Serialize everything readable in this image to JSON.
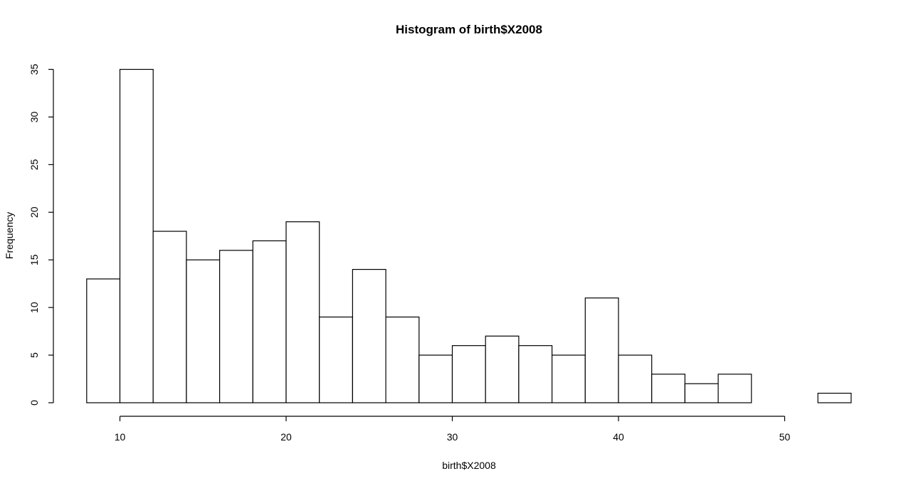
{
  "chart_data": {
    "type": "bar",
    "title": "Histogram of birth$X2008",
    "xlabel": "birth$X2008",
    "ylabel": "Frequency",
    "bin_edges": [
      8,
      10,
      12,
      14,
      16,
      18,
      20,
      22,
      24,
      26,
      28,
      30,
      32,
      34,
      36,
      38,
      40,
      42,
      44,
      46,
      48,
      50,
      52,
      54
    ],
    "values": [
      13,
      35,
      18,
      15,
      16,
      17,
      19,
      9,
      14,
      9,
      5,
      6,
      7,
      6,
      5,
      11,
      5,
      3,
      2,
      3,
      0,
      0,
      1
    ],
    "xticks": [
      10,
      20,
      30,
      40,
      50
    ],
    "yticks": [
      0,
      5,
      10,
      15,
      20,
      25,
      30,
      35
    ],
    "xlim": [
      8,
      54
    ],
    "ylim": [
      0,
      35
    ],
    "grid": false,
    "colors": {
      "bar_fill": "#ffffff",
      "bar_stroke": "#000000"
    }
  }
}
